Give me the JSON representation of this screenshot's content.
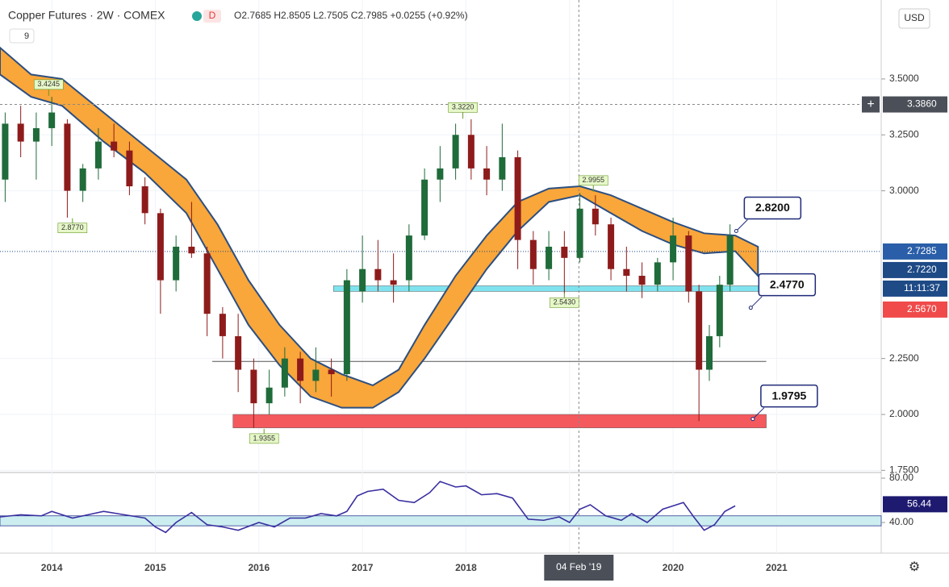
{
  "header": {
    "symbol": "Copper Futures · 2W · COMEX",
    "badge": "D",
    "ohlc": "O2.7685 H2.8505 L2.7505 C2.7985 +0.0255 (+0.92%)",
    "indicator": "9",
    "currency": "USD",
    "timer": "11:11:37"
  },
  "chart_data": {
    "type": "candlestick",
    "x": [
      2013.55,
      2013.7,
      2013.85,
      2014.0,
      2014.15,
      2014.3,
      2014.45,
      2014.6,
      2014.75,
      2014.9,
      2015.05,
      2015.2,
      2015.35,
      2015.5,
      2015.65,
      2015.8,
      2015.95,
      2016.1,
      2016.25,
      2016.4,
      2016.55,
      2016.7,
      2016.85,
      2017.0,
      2017.15,
      2017.3,
      2017.45,
      2017.6,
      2017.75,
      2017.9,
      2018.05,
      2018.2,
      2018.35,
      2018.5,
      2018.65,
      2018.8,
      2018.95,
      2019.1,
      2019.25,
      2019.4,
      2019.55,
      2019.7,
      2019.85,
      2020.0,
      2020.15,
      2020.25,
      2020.35,
      2020.45,
      2020.55
    ],
    "open": [
      3.05,
      3.3,
      3.22,
      3.28,
      3.3,
      3.0,
      3.1,
      3.22,
      3.18,
      3.02,
      2.9,
      2.6,
      2.75,
      2.72,
      2.45,
      2.35,
      2.2,
      2.05,
      2.12,
      2.25,
      2.15,
      2.2,
      2.18,
      2.55,
      2.65,
      2.6,
      2.6,
      2.8,
      3.05,
      3.1,
      3.25,
      3.1,
      3.05,
      3.15,
      2.78,
      2.65,
      2.75,
      2.7,
      2.92,
      2.85,
      2.65,
      2.62,
      2.58,
      2.68,
      2.8,
      2.55,
      2.2,
      2.35,
      2.58
    ],
    "high": [
      3.35,
      3.38,
      3.35,
      3.42,
      3.32,
      3.12,
      3.28,
      3.3,
      3.22,
      3.06,
      2.92,
      2.8,
      2.95,
      2.75,
      2.48,
      2.45,
      2.25,
      2.2,
      2.3,
      2.28,
      2.3,
      2.25,
      2.65,
      2.8,
      2.78,
      2.72,
      2.85,
      3.1,
      3.2,
      3.3,
      3.32,
      3.2,
      3.3,
      3.18,
      2.82,
      2.82,
      2.82,
      2.99,
      2.98,
      2.88,
      2.75,
      2.68,
      2.7,
      2.88,
      2.82,
      2.58,
      2.4,
      2.62,
      2.85
    ],
    "low": [
      2.95,
      3.15,
      3.05,
      3.2,
      2.88,
      2.95,
      3.05,
      3.15,
      2.98,
      2.85,
      2.45,
      2.55,
      2.7,
      2.35,
      2.25,
      2.1,
      1.94,
      2.0,
      2.08,
      2.05,
      2.1,
      2.08,
      2.15,
      2.5,
      2.55,
      2.5,
      2.55,
      2.78,
      2.95,
      3.05,
      3.05,
      2.98,
      3.0,
      2.65,
      2.58,
      2.6,
      2.54,
      2.68,
      2.8,
      2.6,
      2.55,
      2.52,
      2.55,
      2.6,
      2.5,
      1.97,
      2.15,
      2.3,
      2.55
    ],
    "close": [
      3.3,
      3.22,
      3.28,
      3.35,
      3.0,
      3.1,
      3.22,
      3.18,
      3.02,
      2.9,
      2.6,
      2.75,
      2.72,
      2.45,
      2.35,
      2.2,
      2.05,
      2.12,
      2.25,
      2.15,
      2.2,
      2.18,
      2.6,
      2.65,
      2.6,
      2.58,
      2.8,
      3.05,
      3.1,
      3.25,
      3.1,
      3.05,
      3.15,
      2.78,
      2.65,
      2.75,
      2.7,
      2.92,
      2.85,
      2.65,
      2.62,
      2.58,
      2.68,
      2.8,
      2.55,
      2.2,
      2.35,
      2.58,
      2.8
    ],
    "up_color": "#1f6b3a",
    "down_color": "#8e1b1b",
    "band": {
      "x": [
        2013.5,
        2013.8,
        2014.1,
        2014.5,
        2014.9,
        2015.3,
        2015.6,
        2015.9,
        2016.2,
        2016.5,
        2016.8,
        2017.1,
        2017.35,
        2017.6,
        2017.9,
        2018.2,
        2018.5,
        2018.8,
        2019.1,
        2019.4,
        2019.7,
        2020.0,
        2020.3,
        2020.6,
        2020.82
      ],
      "upper": [
        3.64,
        3.52,
        3.5,
        3.35,
        3.2,
        3.05,
        2.85,
        2.6,
        2.4,
        2.25,
        2.18,
        2.13,
        2.2,
        2.4,
        2.62,
        2.8,
        2.95,
        3.01,
        3.02,
        2.98,
        2.92,
        2.86,
        2.81,
        2.8,
        2.75
      ],
      "lower": [
        3.52,
        3.42,
        3.38,
        3.22,
        3.08,
        2.9,
        2.65,
        2.4,
        2.22,
        2.08,
        2.03,
        2.03,
        2.1,
        2.25,
        2.45,
        2.65,
        2.82,
        2.95,
        2.98,
        2.9,
        2.82,
        2.76,
        2.72,
        2.73,
        2.62
      ],
      "color": "#f9a63a",
      "edge": "#2c4f80"
    },
    "zones": [
      {
        "lo": 2.55,
        "hi": 2.575,
        "x0": 2016.72,
        "x1": 2020.9,
        "color": "#7fe3ef"
      },
      {
        "lo": 1.94,
        "hi": 2.0,
        "x0": 2015.75,
        "x1": 2020.9,
        "color": "#f4595e"
      }
    ],
    "level": {
      "value": 2.237,
      "x0": 2015.55,
      "x1": 2020.9
    },
    "marks": [
      {
        "value": 3.4245,
        "label": "3.4245",
        "x": 2013.97,
        "position": "above"
      },
      {
        "value": 2.877,
        "label": "2.8770",
        "x": 2014.2,
        "position": "below"
      },
      {
        "value": 1.9355,
        "label": "1.9355",
        "x": 2016.05,
        "position": "below"
      },
      {
        "value": 3.322,
        "label": "3.3220",
        "x": 2017.97,
        "position": "above"
      },
      {
        "value": 2.9955,
        "label": "2.9955",
        "x": 2019.23,
        "position": "above"
      },
      {
        "value": 2.543,
        "label": "2.5430",
        "x": 2018.95,
        "position": "below"
      }
    ],
    "callouts": [
      {
        "value": 2.82,
        "label": "2.8200",
        "x": 2020.61
      },
      {
        "value": 2.477,
        "label": "2.4770",
        "x": 2020.75
      },
      {
        "value": 1.9795,
        "label": "1.9795",
        "x": 2020.77
      }
    ],
    "crosshair": {
      "x": 2019.09,
      "x_label": "04 Feb '19",
      "y": 3.386,
      "y_label": "3.3860"
    },
    "last_price": {
      "value": 2.7285,
      "label": "2.7285"
    },
    "price_labels": [
      {
        "label": "2.7220",
        "color": "#1e4a86"
      },
      {
        "label": "2.5670",
        "color": "#f04a4a"
      }
    ],
    "xlim": [
      2013.5,
      2022.01
    ],
    "xticks": [
      2014,
      2015,
      2016,
      2017,
      2018,
      2019,
      2020,
      2021
    ],
    "ylim": [
      1.744,
      3.853
    ],
    "yticks": [
      {
        "value": 3.5,
        "label": "3.5000"
      },
      {
        "value": 3.25,
        "label": "3.2500"
      },
      {
        "value": 3.0,
        "label": "3.0000"
      },
      {
        "value": 2.25,
        "label": "2.2500"
      },
      {
        "value": 2.0,
        "label": "2.0000"
      },
      {
        "value": 1.75,
        "label": "1.7500"
      }
    ],
    "rsi": {
      "x": [
        2013.5,
        2013.7,
        2013.9,
        2014.0,
        2014.2,
        2014.4,
        2014.5,
        2014.7,
        2014.9,
        2015.0,
        2015.1,
        2015.2,
        2015.35,
        2015.5,
        2015.65,
        2015.8,
        2016.0,
        2016.15,
        2016.3,
        2016.45,
        2016.6,
        2016.75,
        2016.85,
        2016.95,
        2017.05,
        2017.2,
        2017.35,
        2017.5,
        2017.65,
        2017.75,
        2017.9,
        2018.0,
        2018.15,
        2018.3,
        2018.45,
        2018.6,
        2018.75,
        2018.9,
        2019.0,
        2019.1,
        2019.2,
        2019.35,
        2019.5,
        2019.6,
        2019.75,
        2019.9,
        2020.0,
        2020.1,
        2020.2,
        2020.3,
        2020.4,
        2020.5,
        2020.6
      ],
      "values": [
        45,
        47,
        46,
        50,
        44,
        48,
        50,
        47,
        44,
        36,
        31,
        40,
        49,
        38,
        36,
        33,
        40,
        36,
        44,
        44,
        48,
        46,
        50,
        64,
        68,
        70,
        60,
        58,
        67,
        77,
        72,
        73,
        65,
        66,
        62,
        43,
        42,
        45,
        40,
        52,
        56,
        46,
        42,
        48,
        40,
        52,
        55,
        58,
        45,
        33,
        38,
        50,
        55
      ],
      "color": "#3a2fa0",
      "band": [
        37,
        46
      ],
      "band_color": "#cdeef0",
      "ylim": [
        12.36,
        84.36
      ],
      "yticks": [
        {
          "value": 80,
          "label": "80.00"
        },
        {
          "value": 40,
          "label": "40.00"
        }
      ],
      "last": {
        "value": 56.44,
        "label": "56.44"
      }
    }
  }
}
